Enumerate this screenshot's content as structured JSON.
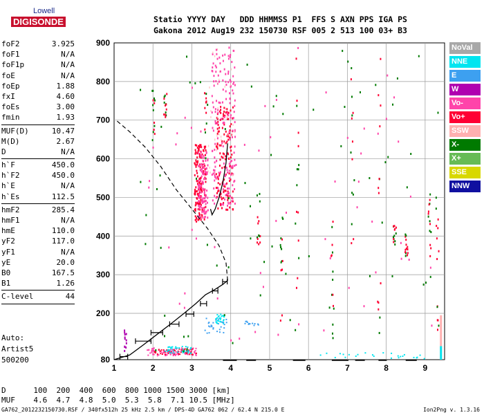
{
  "logo": {
    "top": "Lowell",
    "main": "DIGISONDE"
  },
  "header": {
    "line1": "Statio YYYY DAY   DDD HHMMSS P1  FFS S AXN PPS IGA PS",
    "line2": "Gakona 2012 Aug19 232 150730 RSF 005 2 513 100 03+ B3"
  },
  "params": [
    {
      "label": "foF2",
      "value": "3.925"
    },
    {
      "label": "foF1",
      "value": "N/A"
    },
    {
      "label": "foF1p",
      "value": "N/A"
    },
    {
      "label": "foE",
      "value": "N/A"
    },
    {
      "label": "foEp",
      "value": "1.88"
    },
    {
      "label": "fxI",
      "value": "4.60"
    },
    {
      "label": "foEs",
      "value": "3.00"
    },
    {
      "label": "fmin",
      "value": "1.93"
    },
    {
      "sep": true
    },
    {
      "label": "MUF(D)",
      "value": "10.47"
    },
    {
      "label": "M(D)",
      "value": "2.67"
    },
    {
      "label": "D",
      "value": "N/A"
    },
    {
      "sep": true
    },
    {
      "label": "h`F",
      "value": "450.0"
    },
    {
      "label": "h`F2",
      "value": "450.0"
    },
    {
      "label": "h`E",
      "value": "N/A"
    },
    {
      "label": "h`Es",
      "value": "112.5"
    },
    {
      "sep": true
    },
    {
      "label": "hmF2",
      "value": "285.4"
    },
    {
      "label": "hmF1",
      "value": "N/A"
    },
    {
      "label": "hmE",
      "value": "110.0"
    },
    {
      "label": "yF2",
      "value": "117.0"
    },
    {
      "label": "yF1",
      "value": "N/A"
    },
    {
      "label": "yE",
      "value": "20.0"
    },
    {
      "label": "B0",
      "value": "167.5"
    },
    {
      "label": "B1",
      "value": "1.26"
    },
    {
      "sep": true
    },
    {
      "label": "C-level",
      "value": "44"
    },
    {
      "sep": true
    }
  ],
  "auto": {
    "l1": "Auto:",
    "l2": "Artist5",
    "l3": "500200"
  },
  "bottom": {
    "d_line": "D      100  200  400  600  800 1000 1500 3000 [km]",
    "muf_line": "MUF    4.6  4.7  4.8  5.0  5.3  5.8  7.1 10.5 [MHz]"
  },
  "footer": {
    "left": "GA762_2012232150730.RSF / 340fx512h 25 kHz 2.5 km / DPS-4D GA762 062 / 62.4 N 215.0 E",
    "right": "Ion2Png v. 1.3.16"
  },
  "legend": [
    {
      "label": "NoVal",
      "color": "#a8a8a8"
    },
    {
      "label": "NNE",
      "color": "#00e5f0"
    },
    {
      "label": "E",
      "color": "#3da0f0"
    },
    {
      "label": "W",
      "color": "#b000b0"
    },
    {
      "label": "Vo-",
      "color": "#ff44aa"
    },
    {
      "label": "Vo+",
      "color": "#ff0033"
    },
    {
      "label": "SSW",
      "color": "#ffb0b0"
    },
    {
      "label": "X-",
      "color": "#007a00"
    },
    {
      "label": "X+",
      "color": "#66bb55"
    },
    {
      "label": "SSE",
      "color": "#d8d800"
    },
    {
      "label": "NNW",
      "color": "#1010a0"
    }
  ],
  "chart_data": {
    "type": "scatter",
    "xlim": [
      1,
      9.5
    ],
    "ylim": [
      80,
      900
    ],
    "x_ticks": [
      "1",
      "2",
      "3",
      "4",
      "5",
      "6",
      "7",
      "8",
      "9"
    ],
    "y_ticks": [
      "80",
      "200",
      "300",
      "400",
      "500",
      "600",
      "700",
      "800",
      "900"
    ],
    "grid": true,
    "profile_solid": {
      "x": [
        1.0,
        1.4,
        1.75,
        2.1,
        2.45,
        2.8,
        3.1,
        3.35,
        3.6,
        3.8,
        3.92
      ],
      "y": [
        80,
        92,
        118,
        145,
        172,
        200,
        225,
        248,
        262,
        275,
        285
      ]
    },
    "profile_dashed": {
      "x": [
        3.92,
        3.88,
        3.7,
        3.4,
        3.0,
        2.6,
        2.2,
        1.8,
        1.4,
        1.05
      ],
      "y": [
        285,
        330,
        375,
        420,
        470,
        520,
        580,
        630,
        670,
        700
      ]
    },
    "trace": {
      "x": [
        3.48,
        3.52,
        3.6,
        3.7,
        3.8,
        3.88,
        3.92
      ],
      "y": [
        470,
        455,
        470,
        500,
        540,
        590,
        640
      ]
    },
    "error_bars": [
      {
        "x": 1.25,
        "y": 88,
        "dx": 0.1
      },
      {
        "x": 1.75,
        "y": 128,
        "dx": 0.2
      },
      {
        "x": 2.1,
        "y": 150,
        "dx": 0.15
      },
      {
        "x": 2.55,
        "y": 172,
        "dx": 0.12
      },
      {
        "x": 2.95,
        "y": 198,
        "dx": 0.1
      },
      {
        "x": 3.3,
        "y": 225,
        "dx": 0.08
      },
      {
        "x": 3.6,
        "y": 258,
        "dx": 0.07
      },
      {
        "x": 3.85,
        "y": 282,
        "dx": 0.06
      }
    ]
  }
}
